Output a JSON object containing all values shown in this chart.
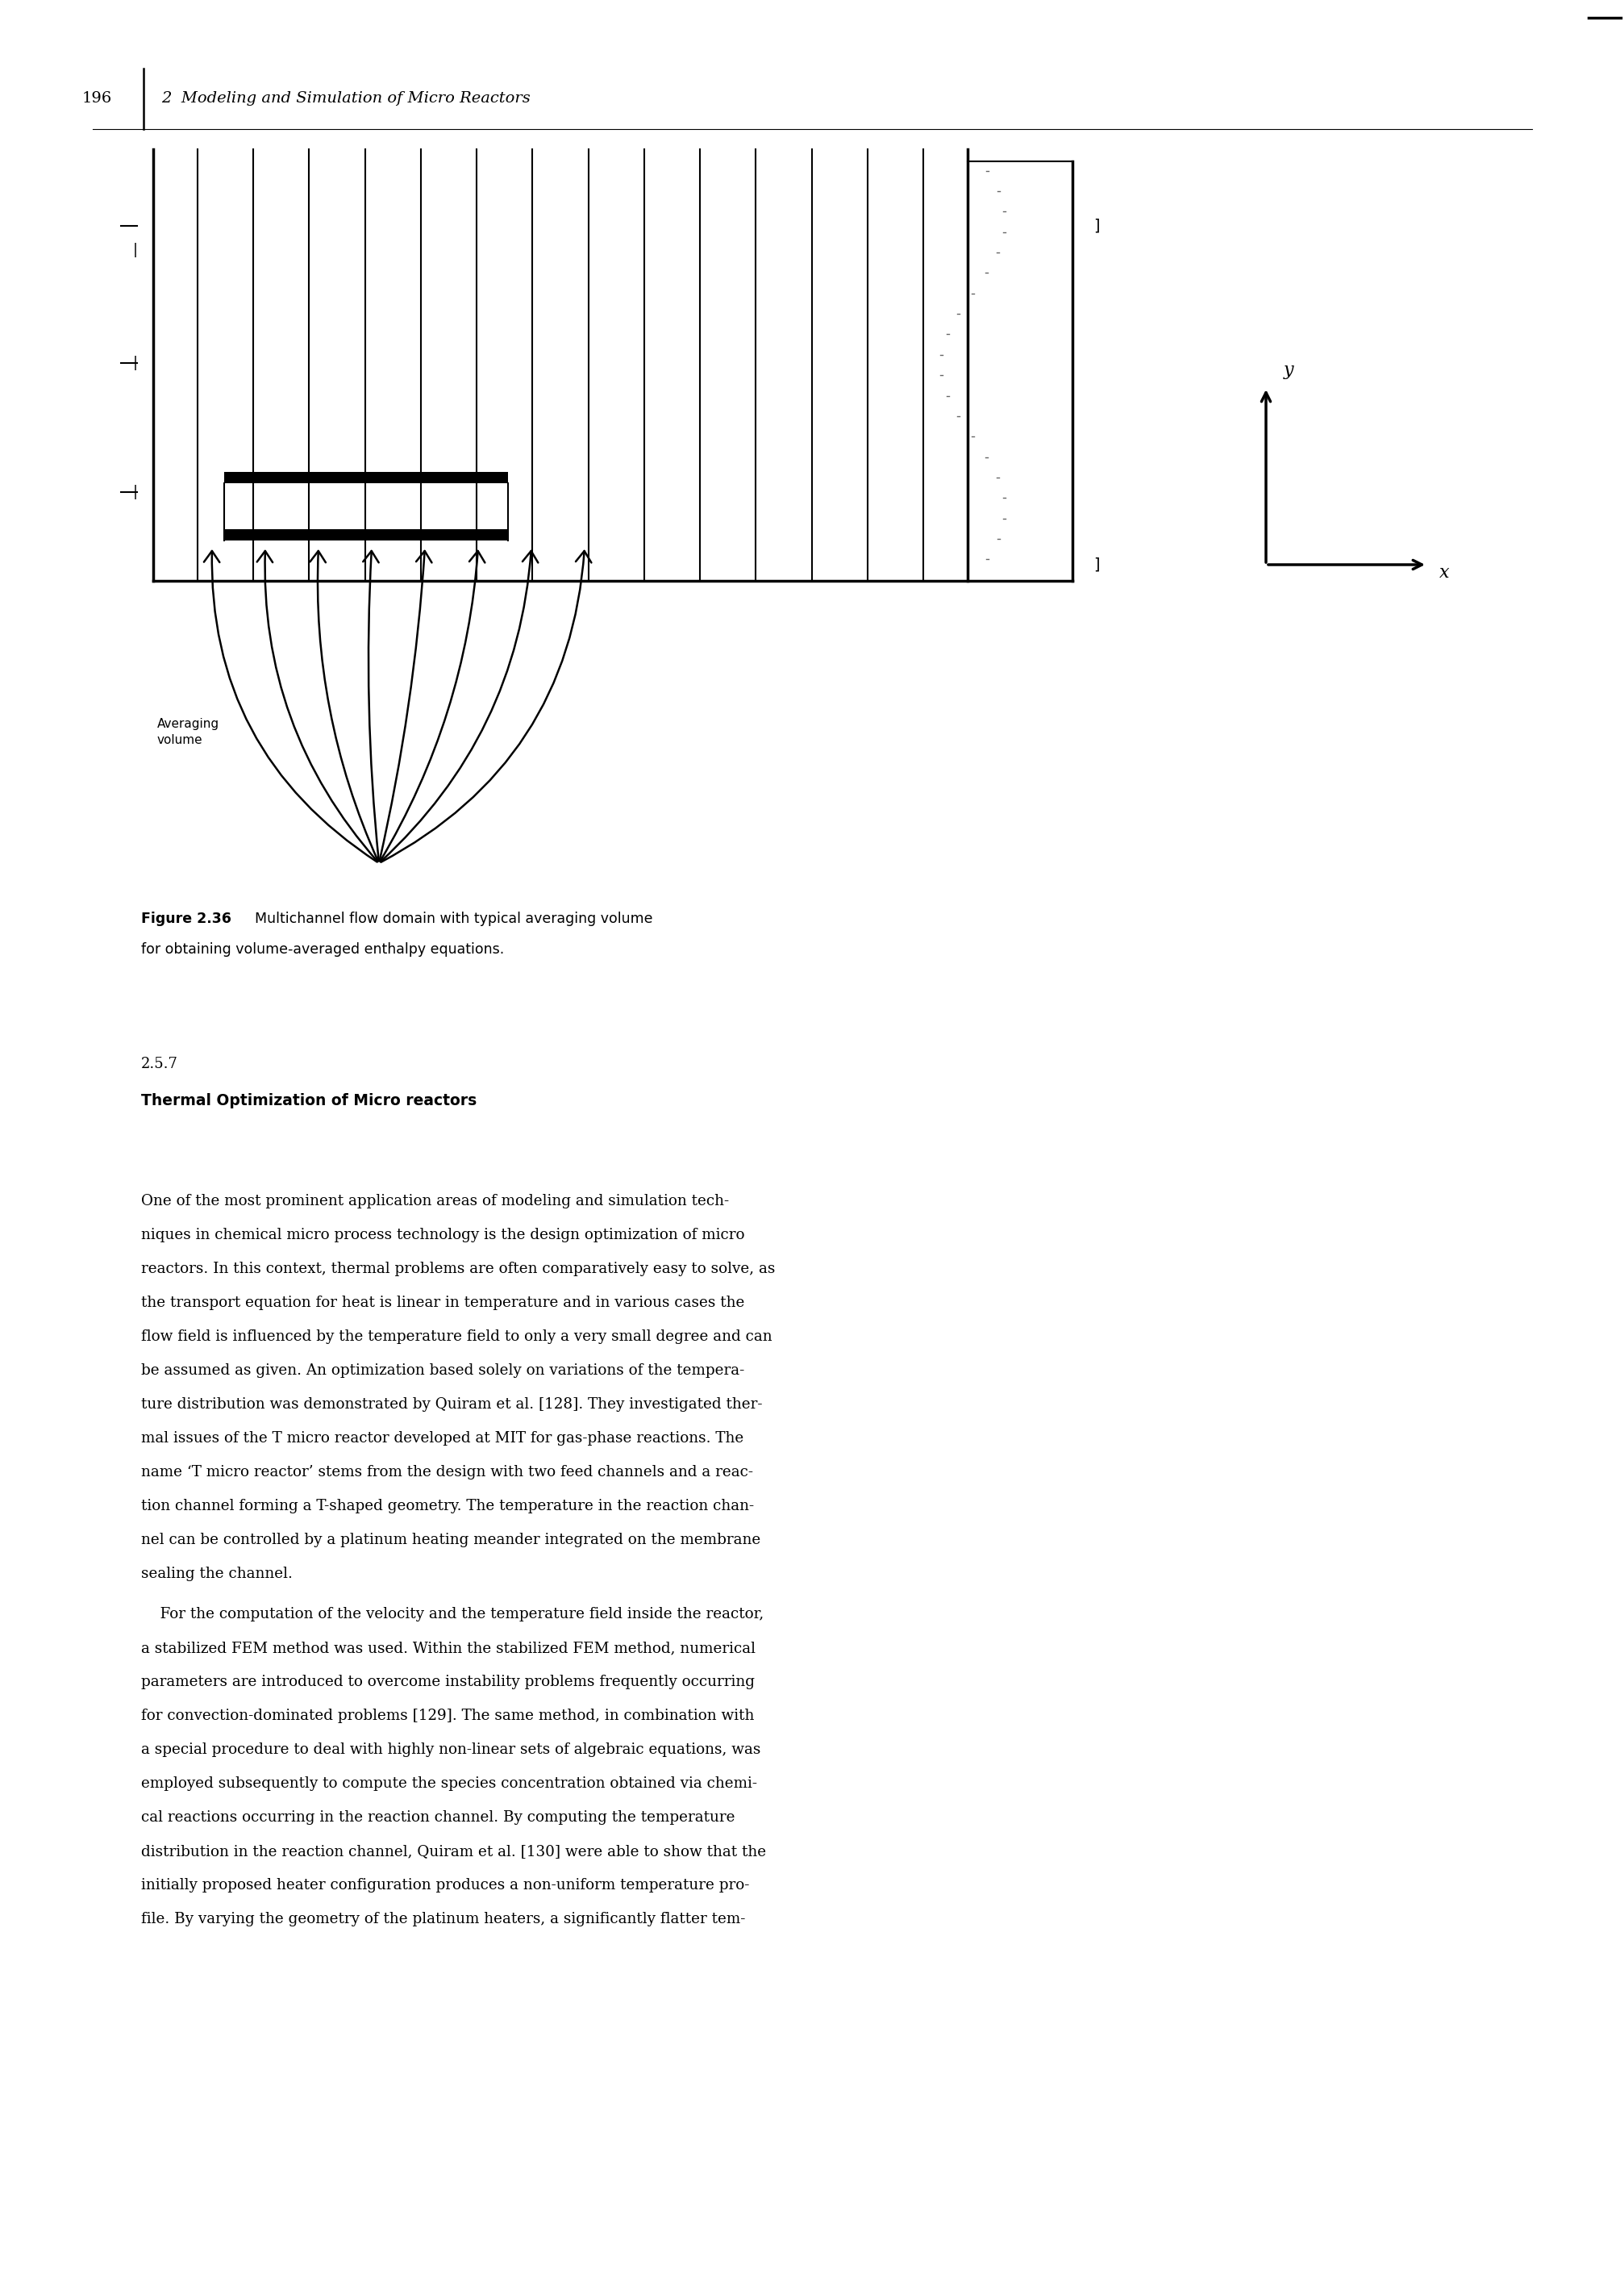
{
  "page_number": "196",
  "header_text": "2  Modeling and Simulation of Micro Reactors",
  "figure_caption_bold": "Figure 2.36",
  "figure_caption_normal": "  Multichannel flow domain with typical averaging volume\nfor obtaining volume-averaged enthalpy equations.",
  "section_number": "2.5.7",
  "section_title": "Thermal Optimization of Micro reactors",
  "body_text": "One of the most prominent application areas of modeling and simulation tech-\nniques in chemical micro process technology is the design optimization of micro\nreactors. In this context, thermal problems are often comparatively easy to solve, as\nthe transport equation for heat is linear in temperature and in various cases the\nflow field is influenced by the temperature field to only a very small degree and can\nbe assumed as given. An optimization based solely on variations of the tempera-\nture distribution was demonstrated by Quiram et al. [128]. They investigated ther-\nmal issues of the T micro reactor developed at MIT for gas-phase reactions. The\nname ‘T micro reactor’ stems from the design with two feed channels and a reac-\ntion channel forming a T-shaped geometry. The temperature in the reaction chan-\nnel can be controlled by a platinum heating meander integrated on the membrane\nsealing the channel.",
  "body_text2": "    For the computation of the velocity and the temperature field inside the reactor,\na stabilized FEM method was used. Within the stabilized FEM method, numerical\nparameters are introduced to overcome instability problems frequently occurring\nfor convection-dominated problems [129]. The same method, in combination with\na special procedure to deal with highly non-linear sets of algebraic equations, was\nemployed subsequently to compute the species concentration obtained via chemi-\ncal reactions occurring in the reaction channel. By computing the temperature\ndistribution in the reaction channel, Quiram et al. [130] were able to show that the\ninitially proposed heater configuration produces a non-uniform temperature pro-\nfile. By varying the geometry of the platinum heaters, a significantly flatter tem-",
  "background_color": "#ffffff",
  "text_color": "#000000"
}
